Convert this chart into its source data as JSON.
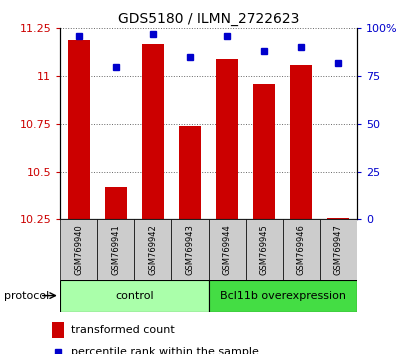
{
  "title": "GDS5180 / ILMN_2722623",
  "samples": [
    "GSM769940",
    "GSM769941",
    "GSM769942",
    "GSM769943",
    "GSM769944",
    "GSM769945",
    "GSM769946",
    "GSM769947"
  ],
  "transformed_counts": [
    11.19,
    10.42,
    11.17,
    10.74,
    11.09,
    10.96,
    11.06,
    10.26
  ],
  "percentile_ranks": [
    96,
    80,
    97,
    85,
    96,
    88,
    90,
    82
  ],
  "ylim_left": [
    10.25,
    11.25
  ],
  "ylim_right": [
    0,
    100
  ],
  "yticks_left": [
    10.25,
    10.5,
    10.75,
    11.0,
    11.25
  ],
  "ytick_labels_left": [
    "10.25",
    "10.5",
    "10.75",
    "11",
    "11.25"
  ],
  "yticks_right": [
    0,
    25,
    50,
    75,
    100
  ],
  "ytick_labels_right": [
    "0",
    "25",
    "50",
    "75",
    "100%"
  ],
  "bar_color": "#cc0000",
  "marker_color": "#0000cc",
  "bar_bottom": 10.25,
  "n_control": 4,
  "n_over": 4,
  "control_label": "control",
  "overexpression_label": "Bcl11b overexpression",
  "protocol_label": "protocol",
  "legend_bar_label": "transformed count",
  "legend_marker_label": "percentile rank within the sample",
  "control_bg": "#aaffaa",
  "overexpression_bg": "#44dd44",
  "sample_bg": "#cccccc",
  "grid_color": "#666666",
  "tick_label_color_left": "#cc0000",
  "tick_label_color_right": "#0000cc",
  "title_fontsize": 10,
  "tick_fontsize": 8,
  "legend_fontsize": 8
}
